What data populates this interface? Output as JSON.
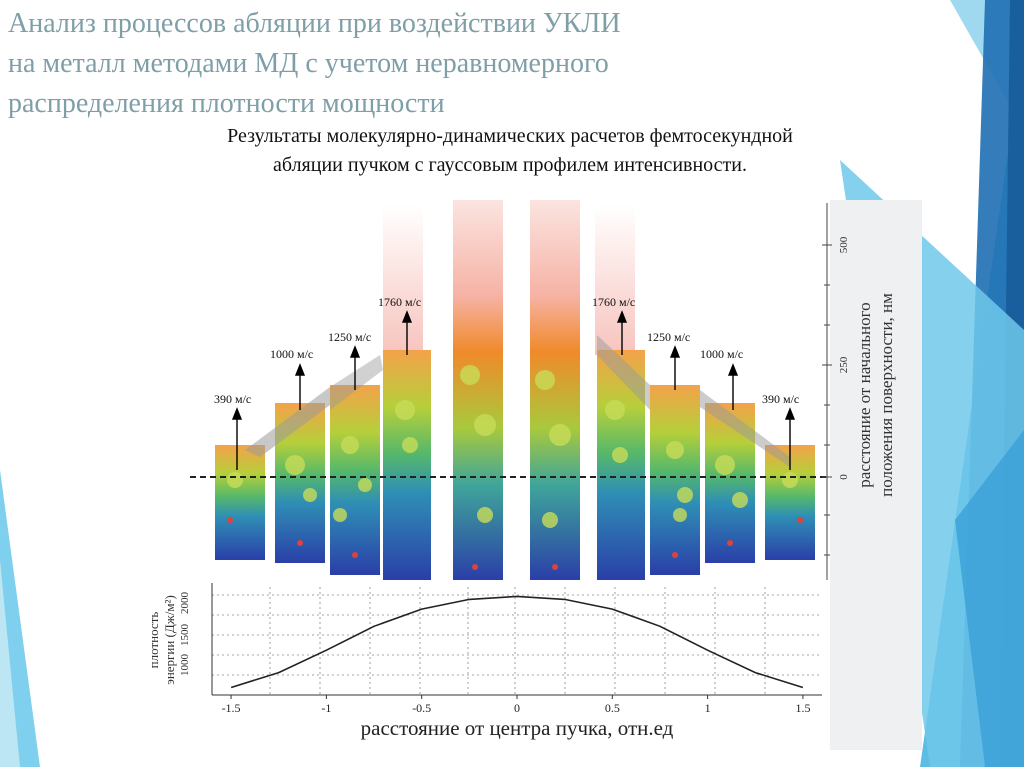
{
  "slide": {
    "title_lines": [
      "Анализ процессов абляции при воздействии УКЛИ",
      "на металл методами МД с учетом неравномерного",
      "распределения плотности мощности"
    ],
    "subtitle_lines": [
      "Результаты молекулярно-динамических расчетов фемтосекундной",
      "абляции пучком с гауссовым профилем интенсивности."
    ]
  },
  "figure": {
    "right_axis_label_line1": "расстояние от начального",
    "right_axis_label_line2": "положения поверхности, нм",
    "right_ticks": [
      "500",
      "250",
      "0"
    ],
    "left_axis_label_line1": "плотность",
    "left_axis_label_line2": "энергии (Дж/м²)",
    "left_ticks": [
      "1000",
      "1500",
      "2000"
    ],
    "x_axis_label": "расстояние от центра пучка, отн.ед",
    "x_ticks": [
      "-1.5",
      "-1",
      "-0.5",
      "0",
      "0.5",
      "1",
      "1.5"
    ],
    "velocity_labels_left": [
      "390 м/с",
      "1000 м/с",
      "1250 м/с",
      "1760 м/с"
    ],
    "velocity_labels_right": [
      "1760 м/с",
      "1250 м/с",
      "1000 м/с",
      "390 м/с"
    ],
    "colors": {
      "blue": "#2a4db5",
      "green": "#6cc04a",
      "orange": "#f08a2a",
      "pink": "#f6c7c0"
    }
  },
  "chart_data": {
    "type": "line",
    "xlabel": "расстояние от центра пучка, отн.ед",
    "ylabel": "плотность энергии (Дж/м²)",
    "xlim": [
      -1.6,
      1.6
    ],
    "ylim": [
      700,
      2200
    ],
    "x": [
      -1.5,
      -1.25,
      -1,
      -0.75,
      -0.5,
      -0.25,
      0,
      0.25,
      0.5,
      0.75,
      1,
      1.25,
      1.5
    ],
    "y": [
      800,
      1000,
      1300,
      1620,
      1850,
      1980,
      2020,
      1980,
      1850,
      1620,
      1300,
      1000,
      800
    ]
  }
}
